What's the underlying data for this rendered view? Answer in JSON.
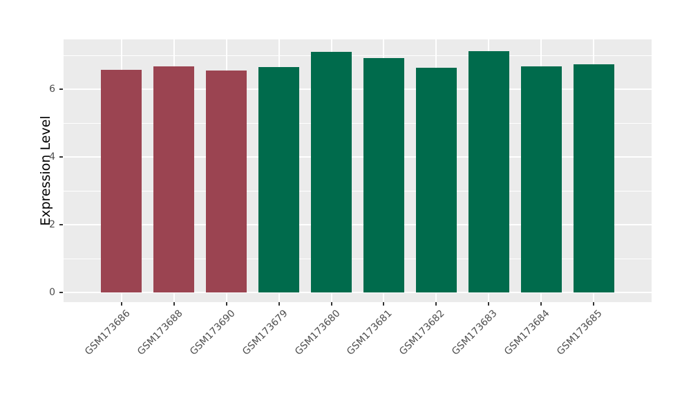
{
  "figure": {
    "background_color": "#ffffff",
    "panel_background_color": "#ebebeb",
    "grid_color": "#ffffff",
    "tick_mark_color": "#333333",
    "axis_text_color": "#4d4d4d",
    "axis_title_color": "#000000"
  },
  "chart_data": {
    "type": "bar",
    "title": "",
    "xlabel": "",
    "ylabel": "Expression Level",
    "categories": [
      "GSM173686",
      "GSM173688",
      "GSM173690",
      "GSM173679",
      "GSM173680",
      "GSM173681",
      "GSM173682",
      "GSM173683",
      "GSM173684",
      "GSM173685"
    ],
    "values": [
      6.58,
      6.67,
      6.55,
      6.66,
      7.1,
      6.91,
      6.64,
      7.12,
      6.68,
      6.74
    ],
    "bar_colors": [
      "#9b4451",
      "#9b4451",
      "#9b4451",
      "#006b4c",
      "#006b4c",
      "#006b4c",
      "#006b4c",
      "#006b4c",
      "#006b4c",
      "#006b4c"
    ],
    "group_colors": {
      "group_red": "#9b4451",
      "group_green": "#006b4c"
    },
    "ylim": [
      0,
      7.47
    ],
    "yticks_major": [
      0,
      2,
      4,
      6
    ],
    "yticks_minor": [
      1,
      3,
      5,
      7
    ],
    "x_tick_rotation_deg": -45,
    "grid": "major+minor horizontal white, major vertical white at each category",
    "legend_position": "none"
  }
}
